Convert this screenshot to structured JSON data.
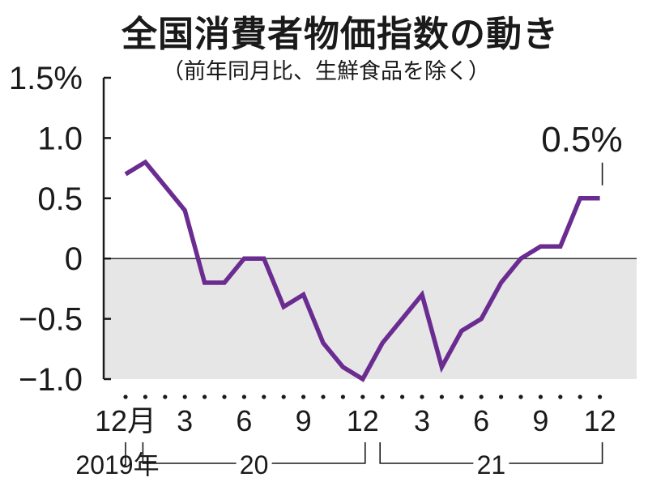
{
  "chart_data": {
    "type": "line",
    "title": "全国消費者物価指数の動き",
    "subtitle": "（前年同月比、生鮮食品を除く）",
    "y_tick_labels": [
      "1.5%",
      "1.0",
      "0.5",
      "0",
      "−0.5",
      "−1.0"
    ],
    "y_ticks": [
      1.5,
      1.0,
      0.5,
      0,
      -0.5,
      -1.0
    ],
    "ylim": [
      -1.0,
      1.5
    ],
    "x": [
      "2019-12",
      "2020-01",
      "2020-02",
      "2020-03",
      "2020-04",
      "2020-05",
      "2020-06",
      "2020-07",
      "2020-08",
      "2020-09",
      "2020-10",
      "2020-11",
      "2020-12",
      "2021-01",
      "2021-02",
      "2021-03",
      "2021-04",
      "2021-05",
      "2021-06",
      "2021-07",
      "2021-08",
      "2021-09",
      "2021-10",
      "2021-11",
      "2021-12"
    ],
    "values": [
      0.7,
      0.8,
      0.6,
      0.4,
      -0.2,
      -0.2,
      0.0,
      0.0,
      -0.4,
      -0.3,
      -0.7,
      -0.9,
      -1.0,
      -0.7,
      -0.5,
      -0.3,
      -0.9,
      -0.6,
      -0.5,
      -0.2,
      0.0,
      0.1,
      0.1,
      0.5,
      0.5
    ],
    "x_tick_labels": [
      {
        "index": 0,
        "label": "12月"
      },
      {
        "index": 3,
        "label": "3"
      },
      {
        "index": 6,
        "label": "6"
      },
      {
        "index": 9,
        "label": "9"
      },
      {
        "index": 12,
        "label": "12"
      },
      {
        "index": 15,
        "label": "3"
      },
      {
        "index": 18,
        "label": "6"
      },
      {
        "index": 21,
        "label": "9"
      },
      {
        "index": 24,
        "label": "12"
      }
    ],
    "year_labels": [
      {
        "label": "2019年",
        "from": 0,
        "to": 0
      },
      {
        "label": "20",
        "from": 1,
        "to": 12
      },
      {
        "label": "21",
        "from": 13,
        "to": 24
      }
    ],
    "annotation": {
      "label": "0.5%",
      "index": 24
    },
    "negative_region_shaded": true,
    "colors": {
      "line": "#6b2c91",
      "shade": "#e6e6e6",
      "axis": "#1a1a1a"
    }
  }
}
